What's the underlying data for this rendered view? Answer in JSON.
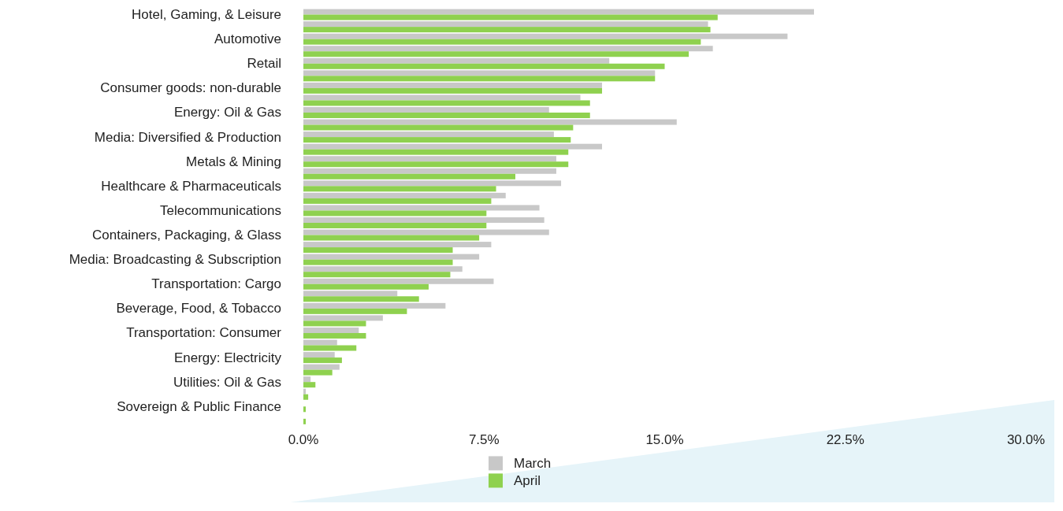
{
  "chart_data": {
    "type": "bar",
    "orientation": "horizontal",
    "categories": [
      "Hotel, Gaming, & Leisure",
      null,
      "Automotive",
      null,
      "Retail",
      null,
      "Consumer goods: non-durable",
      null,
      "Energy: Oil & Gas",
      null,
      "Media: Diversified & Production",
      null,
      "Metals & Mining",
      null,
      "Healthcare & Pharmaceuticals",
      null,
      "Telecommunications",
      null,
      "Containers, Packaging, & Glass",
      null,
      "Media: Broadcasting & Subscription",
      null,
      "Transportation: Cargo",
      null,
      "Beverage, Food, & Tobacco",
      null,
      "Transportation: Consumer",
      null,
      "Energy: Electricity",
      null,
      "Utilities: Oil & Gas",
      null,
      "Sovereign & Public Finance",
      null
    ],
    "series": [
      {
        "name": "March",
        "color": "#c8c8c8",
        "values": [
          21.2,
          16.8,
          20.1,
          17.0,
          12.7,
          14.6,
          12.4,
          11.5,
          10.2,
          15.5,
          10.4,
          12.4,
          10.5,
          10.5,
          10.7,
          8.4,
          9.8,
          10.0,
          10.2,
          7.8,
          7.3,
          6.6,
          7.9,
          3.9,
          5.9,
          3.3,
          2.3,
          1.4,
          1.3,
          1.5,
          0.3,
          0.1,
          0,
          0
        ]
      },
      {
        "name": "April",
        "color": "#8fd14f",
        "values": [
          17.2,
          16.9,
          16.5,
          16.0,
          15.0,
          14.6,
          12.4,
          11.9,
          11.9,
          11.2,
          11.1,
          11.0,
          11.0,
          8.8,
          8.0,
          7.8,
          7.6,
          7.6,
          7.3,
          6.2,
          6.2,
          6.1,
          5.2,
          4.8,
          4.3,
          2.6,
          2.6,
          2.2,
          1.6,
          1.2,
          0.5,
          0.2,
          0.1,
          0.1
        ]
      }
    ],
    "xlim": [
      0,
      30
    ],
    "xticks": [
      {
        "value": 0,
        "label": "0.0%"
      },
      {
        "value": 7.5,
        "label": "7.5%"
      },
      {
        "value": 15,
        "label": "15.0%"
      },
      {
        "value": 22.5,
        "label": "22.5%"
      },
      {
        "value": 30,
        "label": "30.0%"
      }
    ],
    "grid": false,
    "legend": "bottom"
  }
}
